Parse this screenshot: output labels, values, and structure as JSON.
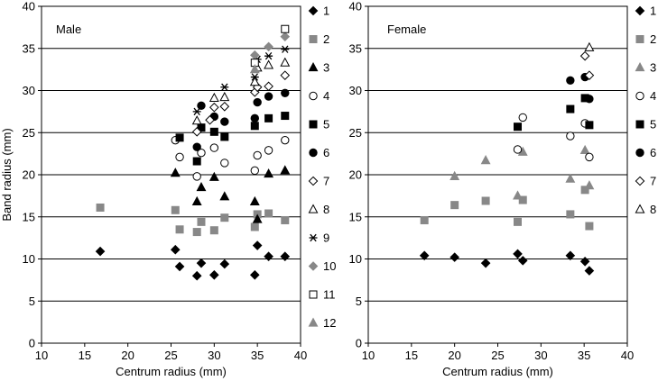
{
  "chart_data": [
    {
      "type": "scatter",
      "title": "Male",
      "xlabel": "Centrum radius (mm)",
      "ylabel": "Band radius (mm)",
      "xlim": [
        10,
        40
      ],
      "ylim": [
        0,
        40
      ],
      "xticks": [
        "10",
        "15",
        "20",
        "25",
        "30",
        "35",
        "40"
      ],
      "yticks": [
        "0",
        "5",
        "10",
        "15",
        "20",
        "25",
        "30",
        "35",
        "40"
      ],
      "grid": "horizontal",
      "legend_position": "right",
      "series": [
        {
          "name": "1",
          "marker": "diamond",
          "color": "#000000",
          "points": [
            [
              16.8,
              10.9
            ],
            [
              25.5,
              11.1
            ],
            [
              26.0,
              9.1
            ],
            [
              28.0,
              8.0
            ],
            [
              28.5,
              9.5
            ],
            [
              30.0,
              8.1
            ],
            [
              31.2,
              9.4
            ],
            [
              34.7,
              8.1
            ],
            [
              35.0,
              11.6
            ],
            [
              36.3,
              10.3
            ],
            [
              38.2,
              10.3
            ]
          ]
        },
        {
          "name": "2",
          "marker": "square",
          "color": "#888888",
          "points": [
            [
              16.8,
              16.1
            ],
            [
              25.5,
              15.8
            ],
            [
              26.0,
              13.5
            ],
            [
              28.0,
              13.2
            ],
            [
              28.5,
              14.4
            ],
            [
              30.0,
              13.4
            ],
            [
              31.2,
              14.9
            ],
            [
              34.7,
              13.8
            ],
            [
              35.0,
              15.3
            ],
            [
              36.3,
              15.4
            ],
            [
              38.2,
              14.6
            ]
          ]
        },
        {
          "name": "3",
          "marker": "triangle",
          "color": "#000000",
          "points": [
            [
              25.5,
              20.2
            ],
            [
              28.0,
              16.8
            ],
            [
              28.5,
              18.5
            ],
            [
              30.0,
              19.7
            ],
            [
              31.2,
              17.4
            ],
            [
              34.7,
              16.8
            ],
            [
              35.0,
              14.7
            ],
            [
              36.3,
              20.1
            ],
            [
              38.2,
              20.5
            ]
          ]
        },
        {
          "name": "4",
          "marker": "circle-open",
          "color": "#000000",
          "points": [
            [
              25.5,
              24.1
            ],
            [
              26.0,
              22.1
            ],
            [
              28.0,
              19.8
            ],
            [
              28.5,
              22.6
            ],
            [
              30.0,
              23.2
            ],
            [
              31.2,
              21.4
            ],
            [
              34.7,
              20.5
            ],
            [
              35.0,
              22.3
            ],
            [
              36.3,
              22.9
            ],
            [
              38.2,
              24.1
            ]
          ]
        },
        {
          "name": "5",
          "marker": "square",
          "color": "#000000",
          "points": [
            [
              26.0,
              24.4
            ],
            [
              28.0,
              21.6
            ],
            [
              28.5,
              25.6
            ],
            [
              30.0,
              25.1
            ],
            [
              31.2,
              24.5
            ],
            [
              34.7,
              25.8
            ],
            [
              36.3,
              26.7
            ],
            [
              38.2,
              27.0
            ]
          ]
        },
        {
          "name": "6",
          "marker": "circle",
          "color": "#000000",
          "points": [
            [
              28.0,
              23.3
            ],
            [
              28.5,
              28.2
            ],
            [
              30.0,
              26.9
            ],
            [
              31.2,
              26.3
            ],
            [
              34.7,
              26.7
            ],
            [
              35.0,
              28.6
            ],
            [
              36.3,
              29.3
            ],
            [
              38.2,
              29.7
            ]
          ]
        },
        {
          "name": "7",
          "marker": "diamond-open",
          "color": "#000000",
          "points": [
            [
              28.0,
              25.1
            ],
            [
              29.5,
              26.5
            ],
            [
              30.0,
              28.0
            ],
            [
              31.2,
              28.1
            ],
            [
              34.7,
              29.8
            ],
            [
              35.0,
              30.4
            ],
            [
              36.3,
              30.5
            ],
            [
              38.2,
              31.8
            ]
          ]
        },
        {
          "name": "8",
          "marker": "triangle-open",
          "color": "#000000",
          "points": [
            [
              28.0,
              26.4
            ],
            [
              30.0,
              29.1
            ],
            [
              31.2,
              29.2
            ],
            [
              34.7,
              31.0
            ],
            [
              35.0,
              32.7
            ],
            [
              36.3,
              33.0
            ],
            [
              38.2,
              33.3
            ]
          ]
        },
        {
          "name": "9",
          "marker": "asterisk",
          "color": "#000000",
          "points": [
            [
              28.0,
              27.5
            ],
            [
              31.2,
              30.4
            ],
            [
              34.7,
              31.6
            ],
            [
              35.0,
              33.7
            ],
            [
              36.3,
              34.1
            ],
            [
              38.2,
              34.9
            ]
          ]
        },
        {
          "name": "10",
          "marker": "diamond",
          "color": "#888888",
          "points": [
            [
              34.7,
              34.2
            ],
            [
              36.3,
              35.2
            ],
            [
              38.2,
              36.4
            ]
          ]
        },
        {
          "name": "11",
          "marker": "square-open",
          "color": "#000000",
          "points": [
            [
              34.7,
              33.3
            ],
            [
              38.2,
              37.3
            ]
          ]
        },
        {
          "name": "12",
          "marker": "triangle",
          "color": "#888888",
          "points": [
            [
              34.7,
              32.5
            ]
          ]
        }
      ]
    },
    {
      "type": "scatter",
      "title": "Female",
      "xlabel": "Centrum radius (mm)",
      "ylabel": "",
      "xlim": [
        10,
        40
      ],
      "ylim": [
        0,
        40
      ],
      "xticks": [
        "10",
        "15",
        "20",
        "25",
        "30",
        "35",
        "40"
      ],
      "yticks": [
        "0",
        "5",
        "10",
        "15",
        "20",
        "25",
        "30",
        "35",
        "40"
      ],
      "grid": "horizontal",
      "legend_position": "right",
      "series": [
        {
          "name": "1",
          "marker": "diamond",
          "color": "#000000",
          "points": [
            [
              16.5,
              10.4
            ],
            [
              20.0,
              10.2
            ],
            [
              23.6,
              9.5
            ],
            [
              27.3,
              10.6
            ],
            [
              27.9,
              9.8
            ],
            [
              33.4,
              10.4
            ],
            [
              35.1,
              9.7
            ],
            [
              35.6,
              8.6
            ]
          ]
        },
        {
          "name": "2",
          "marker": "square",
          "color": "#888888",
          "points": [
            [
              16.5,
              14.6
            ],
            [
              20.0,
              16.4
            ],
            [
              23.6,
              16.9
            ],
            [
              27.3,
              14.4
            ],
            [
              27.9,
              17.0
            ],
            [
              33.4,
              15.3
            ],
            [
              35.1,
              18.2
            ],
            [
              35.6,
              13.9
            ]
          ]
        },
        {
          "name": "3",
          "marker": "triangle",
          "color": "#888888",
          "points": [
            [
              20.0,
              19.8
            ],
            [
              23.6,
              21.7
            ],
            [
              27.3,
              17.5
            ],
            [
              27.9,
              22.7
            ],
            [
              33.4,
              19.5
            ],
            [
              35.1,
              22.9
            ],
            [
              35.6,
              18.7
            ]
          ]
        },
        {
          "name": "4",
          "marker": "circle-open",
          "color": "#000000",
          "points": [
            [
              27.3,
              23.0
            ],
            [
              27.9,
              26.8
            ],
            [
              33.4,
              24.6
            ],
            [
              35.1,
              26.1
            ],
            [
              35.6,
              22.1
            ]
          ]
        },
        {
          "name": "5",
          "marker": "square",
          "color": "#000000",
          "points": [
            [
              27.3,
              25.7
            ],
            [
              33.4,
              27.8
            ],
            [
              35.1,
              29.1
            ],
            [
              35.6,
              25.9
            ]
          ]
        },
        {
          "name": "6",
          "marker": "circle",
          "color": "#000000",
          "points": [
            [
              33.4,
              31.2
            ],
            [
              35.1,
              31.6
            ],
            [
              35.6,
              29.0
            ]
          ]
        },
        {
          "name": "7",
          "marker": "diamond-open",
          "color": "#000000",
          "points": [
            [
              35.1,
              34.1
            ],
            [
              35.6,
              31.8
            ]
          ]
        },
        {
          "name": "8",
          "marker": "triangle-open",
          "color": "#000000",
          "points": [
            [
              35.6,
              35.1
            ]
          ]
        }
      ]
    }
  ]
}
